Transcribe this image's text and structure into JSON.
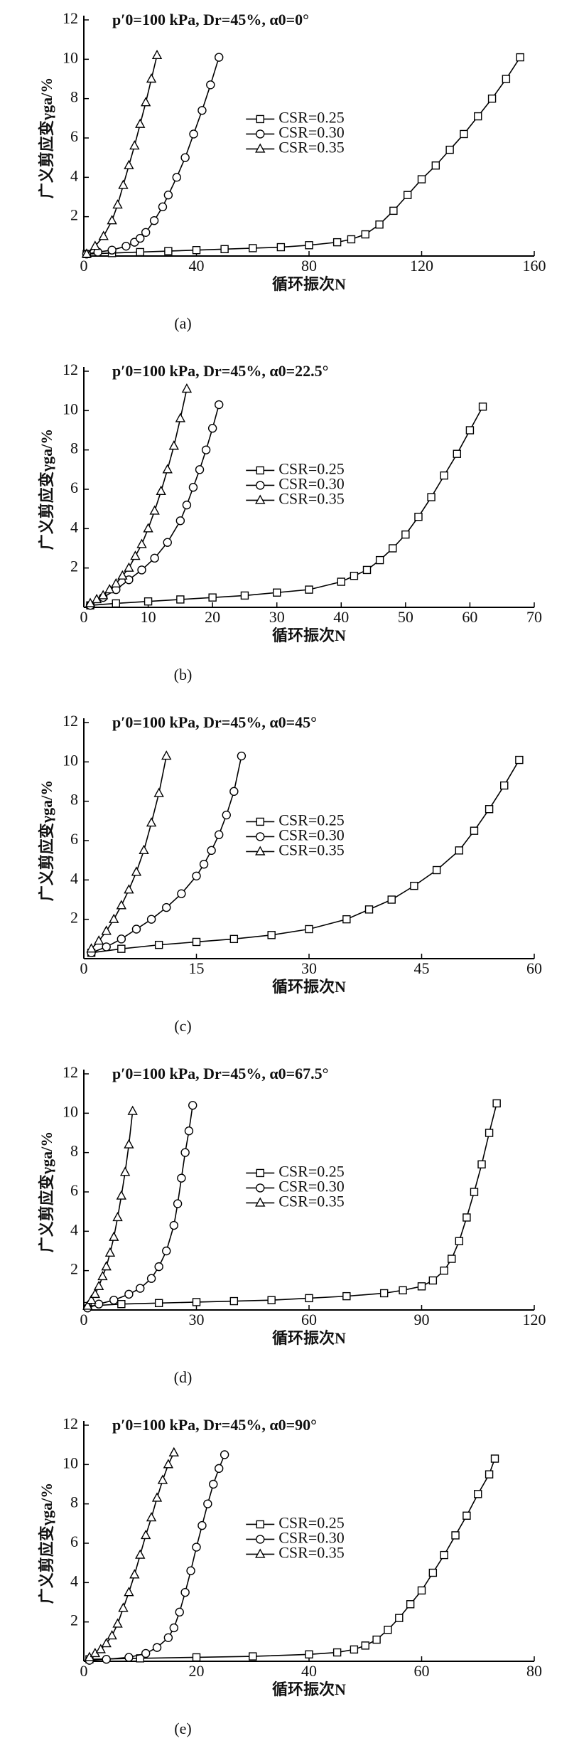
{
  "chart_data": [
    {
      "type": "line",
      "title": "p′0=100 kPa, Dr=45%, α0=0°",
      "xlabel": "循环振次N",
      "ylabel": "广义剪应变γga/%",
      "panel_label": "(a)",
      "xlim": [
        0,
        160
      ],
      "ylim": [
        0,
        12
      ],
      "xticks": [
        0,
        40,
        80,
        120,
        160
      ],
      "yticks": [
        2,
        4,
        6,
        8,
        10,
        12
      ],
      "legend": "center",
      "series": [
        {
          "name": "CSR=0.25",
          "marker": "square",
          "color": "#000000",
          "x": [
            1,
            10,
            20,
            30,
            40,
            50,
            60,
            70,
            80,
            90,
            95,
            100,
            105,
            110,
            115,
            120,
            125,
            130,
            135,
            140,
            145,
            150,
            155
          ],
          "values": [
            0.1,
            0.15,
            0.2,
            0.25,
            0.3,
            0.35,
            0.4,
            0.45,
            0.55,
            0.7,
            0.85,
            1.1,
            1.6,
            2.3,
            3.1,
            3.9,
            4.6,
            5.4,
            6.2,
            7.1,
            8.0,
            9.0,
            10.1
          ]
        },
        {
          "name": "CSR=0.30",
          "marker": "circle",
          "color": "#000000",
          "x": [
            1,
            5,
            10,
            15,
            18,
            20,
            22,
            25,
            28,
            30,
            33,
            36,
            39,
            42,
            45,
            48
          ],
          "values": [
            0.1,
            0.2,
            0.3,
            0.5,
            0.7,
            0.9,
            1.2,
            1.8,
            2.5,
            3.1,
            4.0,
            5.0,
            6.2,
            7.4,
            8.7,
            10.1
          ]
        },
        {
          "name": "CSR=0.35",
          "marker": "triangle",
          "color": "#000000",
          "x": [
            1,
            4,
            7,
            10,
            12,
            14,
            16,
            18,
            20,
            22,
            24,
            26
          ],
          "values": [
            0.1,
            0.5,
            1.0,
            1.8,
            2.6,
            3.6,
            4.6,
            5.6,
            6.7,
            7.8,
            9.0,
            10.2
          ]
        }
      ]
    },
    {
      "type": "line",
      "title": "p′0=100 kPa, Dr=45%, α0=22.5°",
      "xlabel": "循环振次N",
      "ylabel": "广义剪应变γga/%",
      "panel_label": "(b)",
      "xlim": [
        0,
        70
      ],
      "ylim": [
        0,
        12
      ],
      "xticks": [
        0,
        10,
        20,
        30,
        40,
        50,
        60,
        70
      ],
      "yticks": [
        2,
        4,
        6,
        8,
        10,
        12
      ],
      "legend": "center",
      "series": [
        {
          "name": "CSR=0.25",
          "marker": "square",
          "color": "#000000",
          "x": [
            1,
            5,
            10,
            15,
            20,
            25,
            30,
            35,
            40,
            42,
            44,
            46,
            48,
            50,
            52,
            54,
            56,
            58,
            60,
            62
          ],
          "values": [
            0.1,
            0.2,
            0.3,
            0.4,
            0.5,
            0.6,
            0.75,
            0.9,
            1.3,
            1.6,
            1.9,
            2.4,
            3.0,
            3.7,
            4.6,
            5.6,
            6.7,
            7.8,
            9.0,
            10.2
          ]
        },
        {
          "name": "CSR=0.30",
          "marker": "circle",
          "color": "#000000",
          "x": [
            1,
            3,
            5,
            7,
            9,
            11,
            13,
            15,
            16,
            17,
            18,
            19,
            20,
            21
          ],
          "values": [
            0.1,
            0.5,
            0.9,
            1.4,
            1.9,
            2.5,
            3.3,
            4.4,
            5.2,
            6.1,
            7.0,
            8.0,
            9.1,
            10.3
          ]
        },
        {
          "name": "CSR=0.35",
          "marker": "triangle",
          "color": "#000000",
          "x": [
            1,
            2,
            3,
            4,
            5,
            6,
            7,
            8,
            9,
            10,
            11,
            12,
            13,
            14,
            15,
            16
          ],
          "values": [
            0.2,
            0.4,
            0.6,
            0.9,
            1.2,
            1.6,
            2.0,
            2.6,
            3.2,
            4.0,
            4.9,
            5.9,
            7.0,
            8.2,
            9.6,
            11.1
          ]
        }
      ]
    },
    {
      "type": "line",
      "title": "p′0=100 kPa, Dr=45%, α0=45°",
      "xlabel": "循环振次N",
      "ylabel": "广义剪应变γga/%",
      "panel_label": "(c)",
      "xlim": [
        0,
        60
      ],
      "ylim": [
        0,
        12
      ],
      "xticks": [
        0,
        15,
        30,
        45,
        60
      ],
      "yticks": [
        2,
        4,
        6,
        8,
        10,
        12
      ],
      "legend": "center",
      "series": [
        {
          "name": "CSR=0.25",
          "marker": "square",
          "color": "#000000",
          "x": [
            1,
            5,
            10,
            15,
            20,
            25,
            30,
            35,
            38,
            41,
            44,
            47,
            50,
            52,
            54,
            56,
            58
          ],
          "values": [
            0.3,
            0.5,
            0.7,
            0.85,
            1.0,
            1.2,
            1.5,
            2.0,
            2.5,
            3.0,
            3.7,
            4.5,
            5.5,
            6.5,
            7.6,
            8.8,
            10.1
          ]
        },
        {
          "name": "CSR=0.30",
          "marker": "circle",
          "color": "#000000",
          "x": [
            1,
            3,
            5,
            7,
            9,
            11,
            13,
            15,
            16,
            17,
            18,
            19,
            20,
            21
          ],
          "values": [
            0.3,
            0.6,
            1.0,
            1.5,
            2.0,
            2.6,
            3.3,
            4.2,
            4.8,
            5.5,
            6.3,
            7.3,
            8.5,
            10.3
          ]
        },
        {
          "name": "CSR=0.35",
          "marker": "triangle",
          "color": "#000000",
          "x": [
            1,
            2,
            3,
            4,
            5,
            6,
            7,
            8,
            9,
            10,
            11
          ],
          "values": [
            0.5,
            0.9,
            1.4,
            2.0,
            2.7,
            3.5,
            4.4,
            5.5,
            6.9,
            8.4,
            10.3
          ]
        }
      ]
    },
    {
      "type": "line",
      "title": "p′0=100 kPa, Dr=45%, α0=67.5°",
      "xlabel": "循环振次N",
      "ylabel": "广义剪应变γga/%",
      "panel_label": "(d)",
      "xlim": [
        0,
        120
      ],
      "ylim": [
        0,
        12
      ],
      "xticks": [
        0,
        30,
        60,
        90,
        120
      ],
      "yticks": [
        2,
        4,
        6,
        8,
        10,
        12
      ],
      "legend": "center",
      "series": [
        {
          "name": "CSR=0.25",
          "marker": "square",
          "color": "#000000",
          "x": [
            1,
            10,
            20,
            30,
            40,
            50,
            60,
            70,
            80,
            85,
            90,
            93,
            96,
            98,
            100,
            102,
            104,
            106,
            108,
            110
          ],
          "values": [
            0.2,
            0.3,
            0.35,
            0.4,
            0.45,
            0.5,
            0.6,
            0.7,
            0.85,
            1.0,
            1.2,
            1.5,
            2.0,
            2.6,
            3.5,
            4.7,
            6.0,
            7.4,
            9.0,
            10.5
          ]
        },
        {
          "name": "CSR=0.30",
          "marker": "circle",
          "color": "#000000",
          "x": [
            1,
            4,
            8,
            12,
            15,
            18,
            20,
            22,
            24,
            25,
            26,
            27,
            28,
            29
          ],
          "values": [
            0.1,
            0.3,
            0.5,
            0.8,
            1.1,
            1.6,
            2.2,
            3.0,
            4.3,
            5.4,
            6.7,
            8.0,
            9.1,
            10.4
          ]
        },
        {
          "name": "CSR=0.35",
          "marker": "triangle",
          "color": "#000000",
          "x": [
            1,
            2,
            3,
            4,
            5,
            6,
            7,
            8,
            9,
            10,
            11,
            12,
            13
          ],
          "values": [
            0.2,
            0.5,
            0.8,
            1.2,
            1.7,
            2.2,
            2.9,
            3.7,
            4.7,
            5.8,
            7.0,
            8.4,
            10.1
          ]
        }
      ]
    },
    {
      "type": "line",
      "title": "p′0=100 kPa, Dr=45%, α0=90°",
      "xlabel": "循环振次N",
      "ylabel": "广义剪应变γga/%",
      "panel_label": "(e)",
      "xlim": [
        0,
        80
      ],
      "ylim": [
        0,
        12
      ],
      "xticks": [
        0,
        20,
        40,
        60,
        80
      ],
      "yticks": [
        2,
        4,
        6,
        8,
        10,
        12
      ],
      "legend": "center",
      "series": [
        {
          "name": "CSR=0.25",
          "marker": "square",
          "color": "#000000",
          "x": [
            1,
            10,
            20,
            30,
            40,
            45,
            48,
            50,
            52,
            54,
            56,
            58,
            60,
            62,
            64,
            66,
            68,
            70,
            72,
            73
          ],
          "values": [
            0.1,
            0.15,
            0.2,
            0.25,
            0.35,
            0.45,
            0.6,
            0.8,
            1.1,
            1.6,
            2.2,
            2.9,
            3.6,
            4.5,
            5.4,
            6.4,
            7.4,
            8.5,
            9.5,
            10.3
          ]
        },
        {
          "name": "CSR=0.30",
          "marker": "circle",
          "color": "#000000",
          "x": [
            1,
            4,
            8,
            11,
            13,
            15,
            16,
            17,
            18,
            19,
            20,
            21,
            22,
            23,
            24,
            25
          ],
          "values": [
            0.05,
            0.1,
            0.2,
            0.4,
            0.7,
            1.2,
            1.7,
            2.5,
            3.5,
            4.6,
            5.8,
            6.9,
            8.0,
            9.0,
            9.8,
            10.5
          ]
        },
        {
          "name": "CSR=0.35",
          "marker": "triangle",
          "color": "#000000",
          "x": [
            1,
            2,
            3,
            4,
            5,
            6,
            7,
            8,
            9,
            10,
            11,
            12,
            13,
            14,
            15,
            16
          ],
          "values": [
            0.2,
            0.4,
            0.6,
            0.9,
            1.3,
            1.9,
            2.7,
            3.5,
            4.4,
            5.4,
            6.4,
            7.3,
            8.3,
            9.2,
            10.0,
            10.6
          ]
        }
      ]
    }
  ]
}
